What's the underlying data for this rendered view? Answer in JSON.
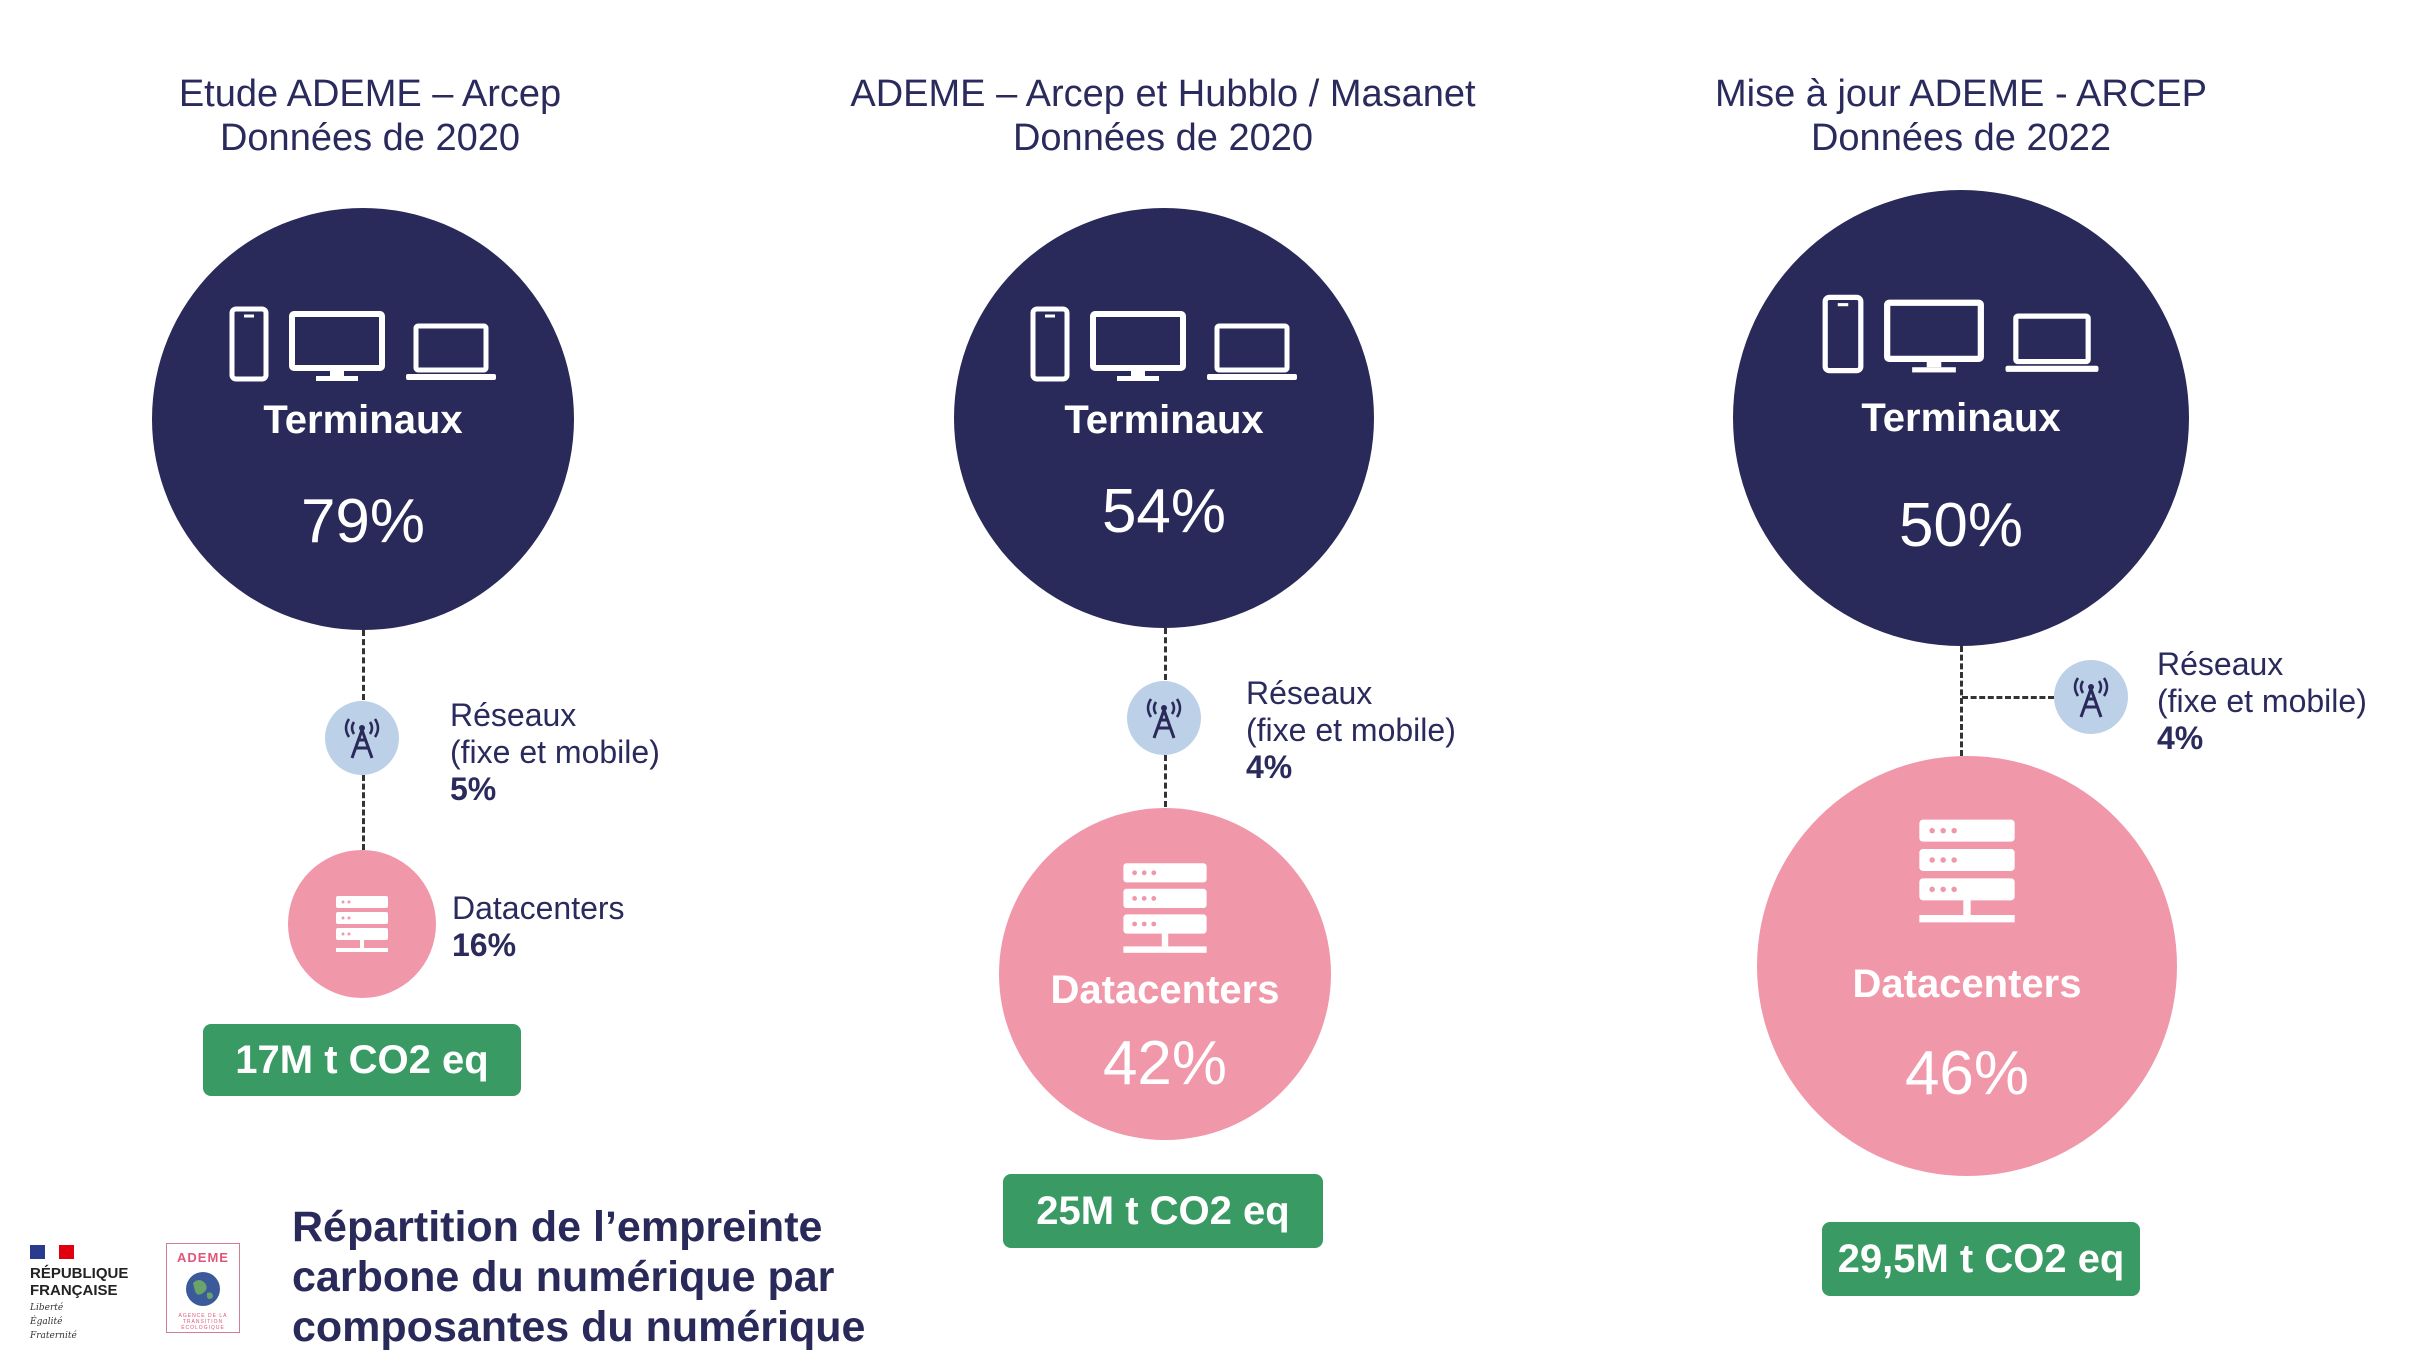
{
  "columns": [
    {
      "title_line1": "Etude ADEME – Arcep",
      "title_line2": "Données de 2020",
      "terminaux": {
        "label": "Terminaux",
        "pct": "79%"
      },
      "reseaux": {
        "label1": "Réseaux",
        "label2": "(fixe et mobile)",
        "pct": "5%"
      },
      "datacenters": {
        "label": "Datacenters",
        "pct": "16%"
      },
      "total": "17M t CO2 eq"
    },
    {
      "title_line1": "ADEME – Arcep et Hubblo / Masanet",
      "title_line2": "Données de 2020",
      "terminaux": {
        "label": "Terminaux",
        "pct": "54%"
      },
      "reseaux": {
        "label1": "Réseaux",
        "label2": "(fixe et mobile)",
        "pct": "4%"
      },
      "datacenters": {
        "label": "Datacenters",
        "pct": "42%"
      },
      "total": "25M t CO2 eq"
    },
    {
      "title_line1": "Mise à jour ADEME - ARCEP",
      "title_line2": "Données de 2022",
      "terminaux": {
        "label": "Terminaux",
        "pct": "50%"
      },
      "reseaux": {
        "label1": "Réseaux",
        "label2": "(fixe et mobile)",
        "pct": "4%"
      },
      "datacenters": {
        "label": "Datacenters",
        "pct": "46%"
      },
      "total": "29,5M t CO2 eq"
    }
  ],
  "caption": {
    "line1": "Répartition de l’empreinte",
    "line2": "carbone du numérique par",
    "line3": "composantes du numérique"
  },
  "logos": {
    "rf_line1": "RÉPUBLIQUE",
    "rf_line2": "FRANÇAISE",
    "rf_motto1": "Liberté",
    "rf_motto2": "Égalité",
    "rf_motto3": "Fraternité",
    "ademe_name": "ADEME",
    "ademe_sub": "AGENCE DE LA TRANSITION ÉCOLOGIQUE"
  },
  "colors": {
    "navy": "#29295a",
    "pink": "#f097aa",
    "green": "#3a9a64",
    "network_bubble": "#bcd0e8"
  },
  "icons": [
    "smartphone-icon",
    "monitor-icon",
    "laptop-icon",
    "antenna-icon",
    "server-icon"
  ]
}
